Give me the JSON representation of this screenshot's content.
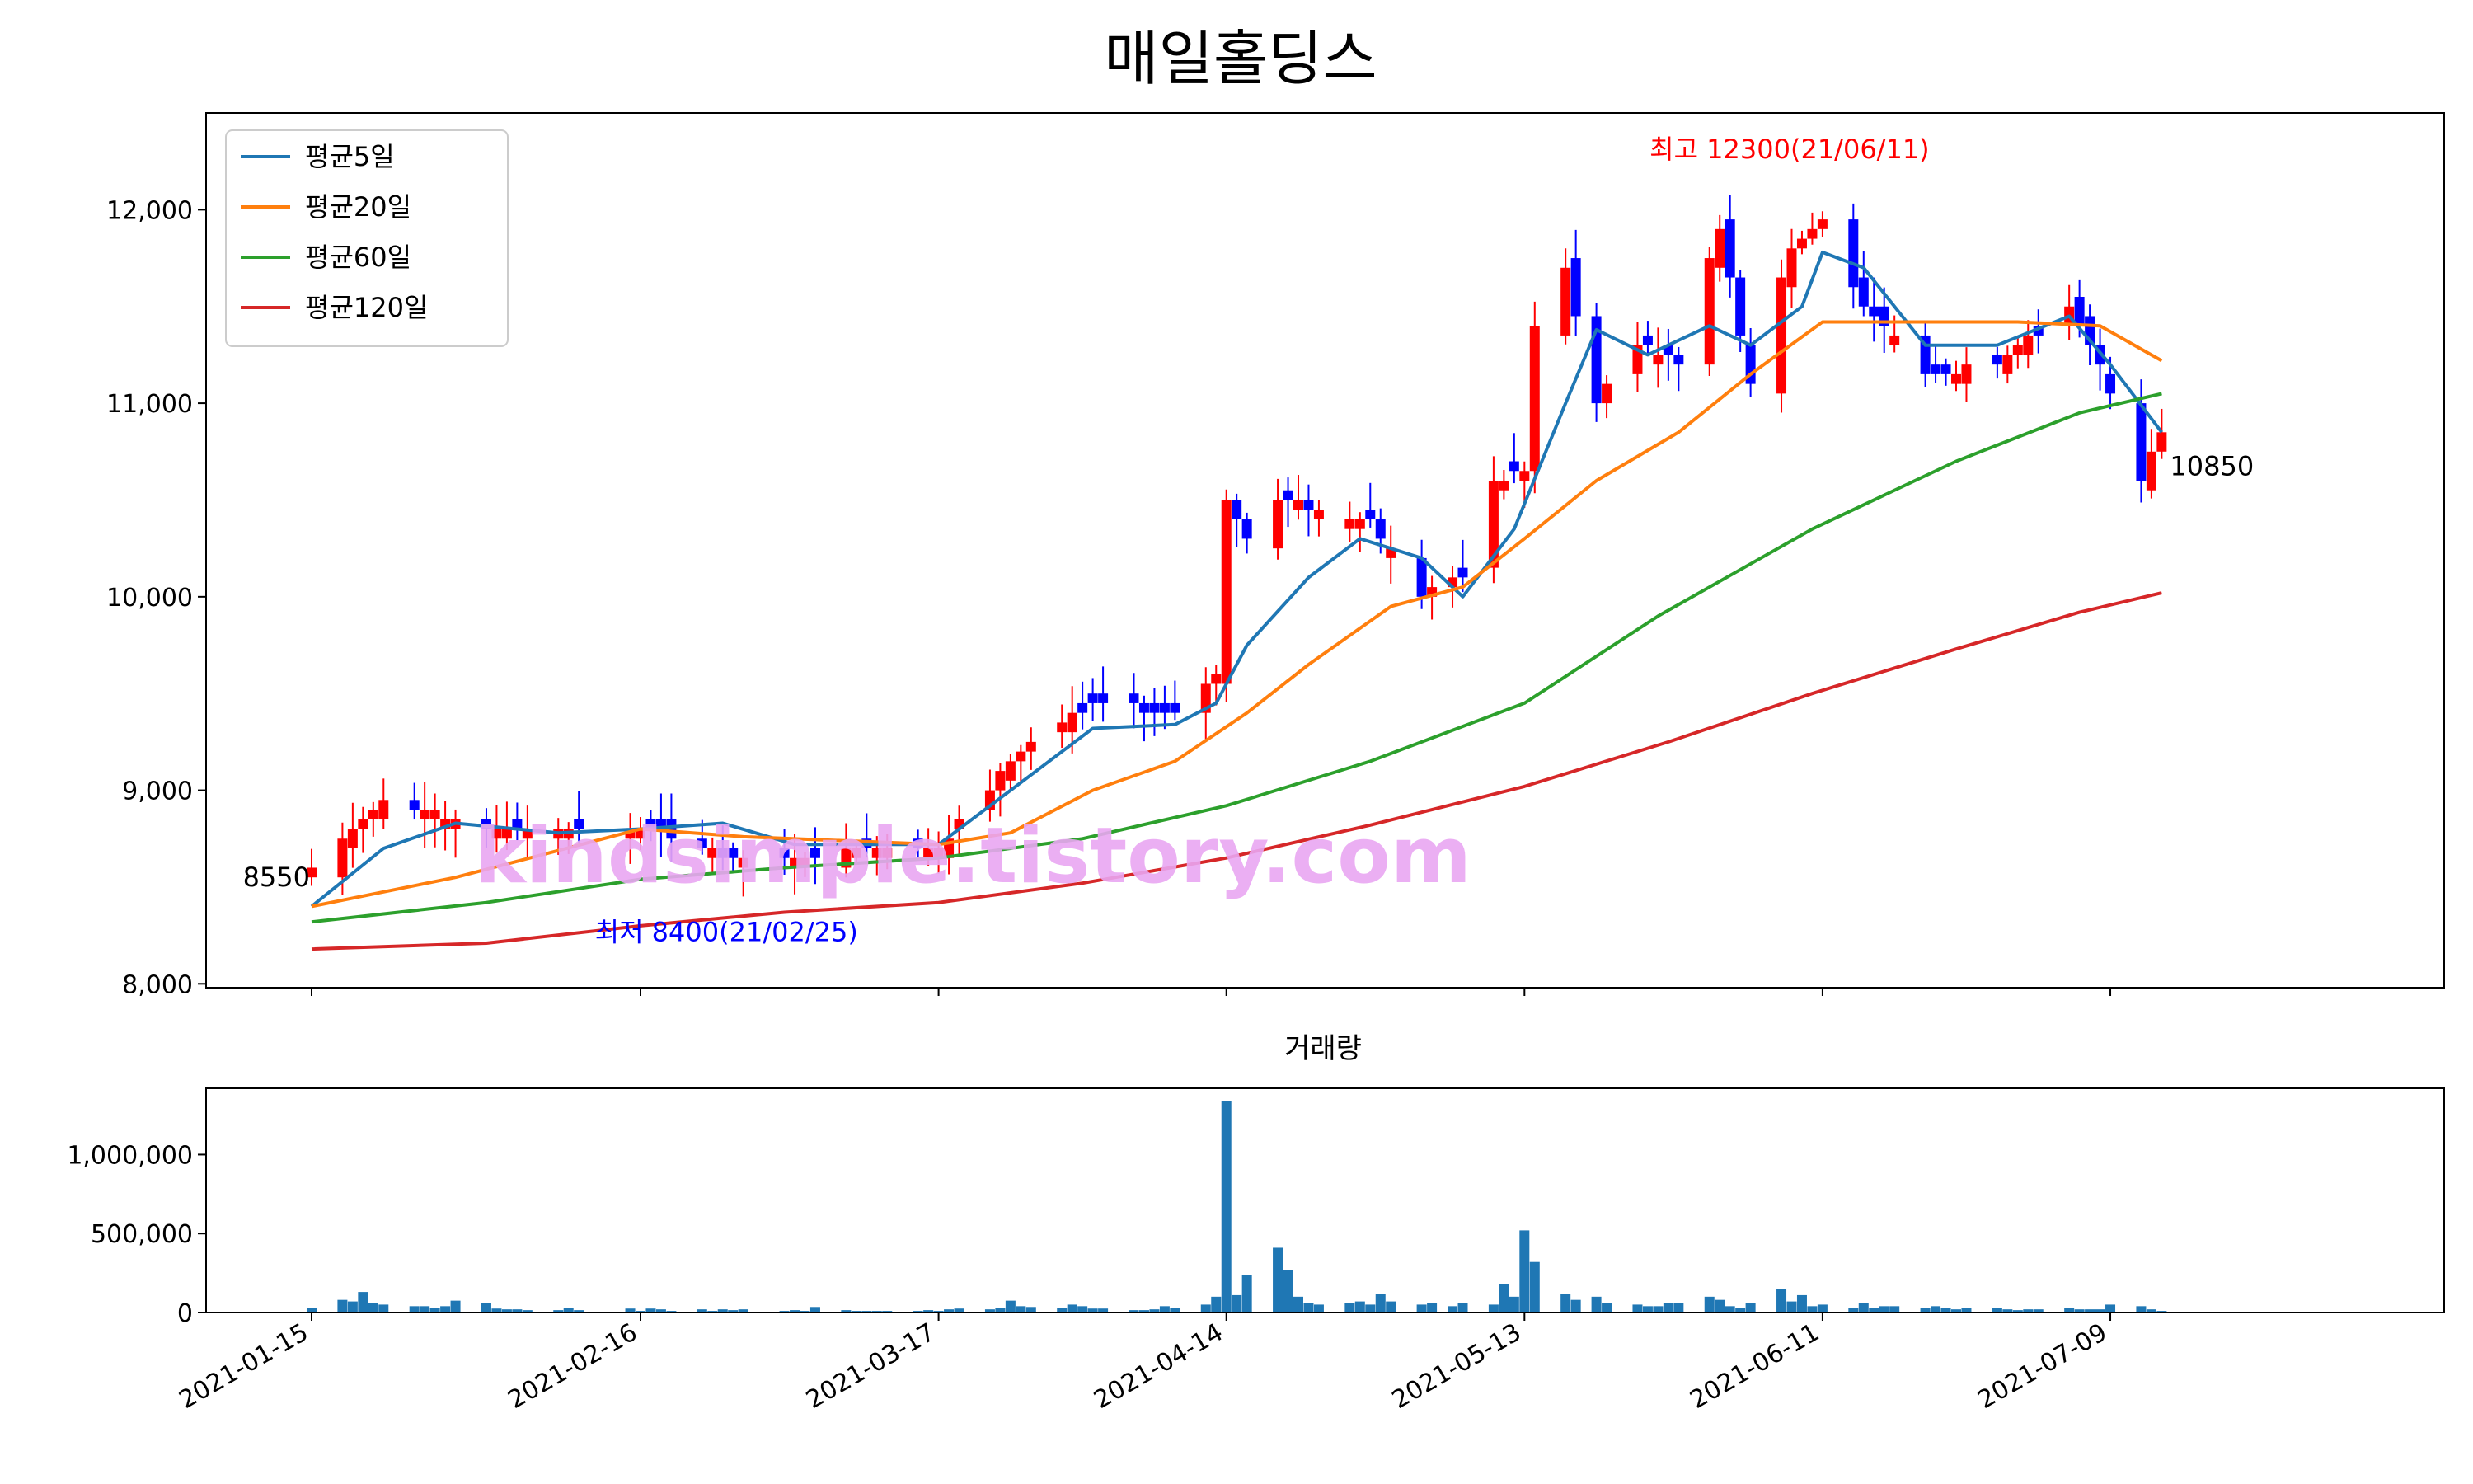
{
  "chart_data": [
    {
      "type": "candlestick",
      "title": "매일홀딩스",
      "xlabel": "",
      "ylabel": "",
      "ylim": [
        7980,
        12500
      ],
      "y_ticks": [
        8000,
        9000,
        10000,
        11000,
        12000
      ],
      "y_tick_labels": [
        "8,000",
        "9,000",
        "10,000",
        "11,000",
        "12,000"
      ],
      "x_ticks": [
        "2021-01-15",
        "2021-02-16",
        "2021-03-17",
        "2021-04-14",
        "2021-05-13",
        "2021-06-11",
        "2021-07-09"
      ],
      "legend_position": "top-left",
      "up_color": "#ff0000",
      "down_color": "#0000ff",
      "anchors": [
        {
          "date": "2021-01-15",
          "close": 8600
        },
        {
          "date": "2021-01-22",
          "close": 8950
        },
        {
          "date": "2021-02-01",
          "close": 8800
        },
        {
          "date": "2021-02-16",
          "close": 8820
        },
        {
          "date": "2021-02-25",
          "close": 8650
        },
        {
          "date": "2021-03-17",
          "close": 8700
        },
        {
          "date": "2021-03-24",
          "close": 9150
        },
        {
          "date": "2021-04-01",
          "close": 9450
        },
        {
          "date": "2021-04-09",
          "close": 9400
        },
        {
          "date": "2021-04-13",
          "close": 9600
        },
        {
          "date": "2021-04-14",
          "close": 10500
        },
        {
          "date": "2021-04-16",
          "close": 10300
        },
        {
          "date": "2021-04-19",
          "close": 10500
        },
        {
          "date": "2021-04-28",
          "close": 10400
        },
        {
          "date": "2021-05-03",
          "close": 10000
        },
        {
          "date": "2021-05-07",
          "close": 10100
        },
        {
          "date": "2021-05-10",
          "close": 10600
        },
        {
          "date": "2021-05-13",
          "close": 10650
        },
        {
          "date": "2021-05-14",
          "close": 11400
        },
        {
          "date": "2021-05-17",
          "close": 11700
        },
        {
          "date": "2021-05-20",
          "close": 11000
        },
        {
          "date": "2021-05-24",
          "close": 11300
        },
        {
          "date": "2021-05-28",
          "close": 11200
        },
        {
          "date": "2021-06-01",
          "close": 11900
        },
        {
          "date": "2021-06-04",
          "close": 11100
        },
        {
          "date": "2021-06-08",
          "close": 11800
        },
        {
          "date": "2021-06-11",
          "close": 11950
        },
        {
          "date": "2021-06-15",
          "close": 11500
        },
        {
          "date": "2021-06-21",
          "close": 11150
        },
        {
          "date": "2021-06-28",
          "close": 11200
        },
        {
          "date": "2021-07-05",
          "close": 11500
        },
        {
          "date": "2021-07-08",
          "close": 11200
        },
        {
          "date": "2021-07-12",
          "close": 10600
        },
        {
          "date": "2021-07-14",
          "close": 10850
        }
      ],
      "moving_averages": [
        {
          "name": "평균5일",
          "color": "#1f77b4",
          "points": [
            [
              "2021-01-15",
              8400
            ],
            [
              "2021-01-22",
              8700
            ],
            [
              "2021-01-29",
              8830
            ],
            [
              "2021-02-08",
              8780
            ],
            [
              "2021-02-16",
              8800
            ],
            [
              "2021-02-24",
              8830
            ],
            [
              "2021-03-03",
              8720
            ],
            [
              "2021-03-17",
              8720
            ],
            [
              "2021-03-24",
              9000
            ],
            [
              "2021-04-01",
              9320
            ],
            [
              "2021-04-09",
              9340
            ],
            [
              "2021-04-13",
              9450
            ],
            [
              "2021-04-16",
              9750
            ],
            [
              "2021-04-22",
              10100
            ],
            [
              "2021-04-27",
              10300
            ],
            [
              "2021-05-03",
              10200
            ],
            [
              "2021-05-07",
              10000
            ],
            [
              "2021-05-12",
              10350
            ],
            [
              "2021-05-17",
              11000
            ],
            [
              "2021-05-20",
              11380
            ],
            [
              "2021-05-25",
              11250
            ],
            [
              "2021-05-31",
              11400
            ],
            [
              "2021-06-04",
              11300
            ],
            [
              "2021-06-09",
              11500
            ],
            [
              "2021-06-11",
              11780
            ],
            [
              "2021-06-15",
              11700
            ],
            [
              "2021-06-21",
              11300
            ],
            [
              "2021-06-28",
              11300
            ],
            [
              "2021-07-05",
              11450
            ],
            [
              "2021-07-09",
              11200
            ],
            [
              "2021-07-14",
              10850
            ]
          ]
        },
        {
          "name": "평균20일",
          "color": "#ff7f0e",
          "points": [
            [
              "2021-01-15",
              8400
            ],
            [
              "2021-01-29",
              8550
            ],
            [
              "2021-02-16",
              8800
            ],
            [
              "2021-02-26",
              8760
            ],
            [
              "2021-03-17",
              8720
            ],
            [
              "2021-03-24",
              8780
            ],
            [
              "2021-04-01",
              9000
            ],
            [
              "2021-04-09",
              9150
            ],
            [
              "2021-04-16",
              9400
            ],
            [
              "2021-04-22",
              9650
            ],
            [
              "2021-04-30",
              9950
            ],
            [
              "2021-05-07",
              10050
            ],
            [
              "2021-05-13",
              10300
            ],
            [
              "2021-05-20",
              10600
            ],
            [
              "2021-05-28",
              10850
            ],
            [
              "2021-06-04",
              11150
            ],
            [
              "2021-06-11",
              11420
            ],
            [
              "2021-06-21",
              11420
            ],
            [
              "2021-06-30",
              11420
            ],
            [
              "2021-07-08",
              11400
            ],
            [
              "2021-07-14",
              11220
            ]
          ]
        },
        {
          "name": "평균60일",
          "color": "#2ca02c",
          "points": [
            [
              "2021-01-15",
              8320
            ],
            [
              "2021-02-01",
              8420
            ],
            [
              "2021-02-16",
              8540
            ],
            [
              "2021-03-02",
              8600
            ],
            [
              "2021-03-17",
              8650
            ],
            [
              "2021-03-31",
              8750
            ],
            [
              "2021-04-14",
              8920
            ],
            [
              "2021-04-28",
              9150
            ],
            [
              "2021-05-13",
              9450
            ],
            [
              "2021-05-26",
              9900
            ],
            [
              "2021-06-10",
              10350
            ],
            [
              "2021-06-24",
              10700
            ],
            [
              "2021-07-06",
              10950
            ],
            [
              "2021-07-14",
              11050
            ]
          ]
        },
        {
          "name": "평균120일",
          "color": "#d62728",
          "points": [
            [
              "2021-01-15",
              8180
            ],
            [
              "2021-02-01",
              8210
            ],
            [
              "2021-02-16",
              8300
            ],
            [
              "2021-03-02",
              8370
            ],
            [
              "2021-03-17",
              8420
            ],
            [
              "2021-03-31",
              8520
            ],
            [
              "2021-04-14",
              8650
            ],
            [
              "2021-04-28",
              8820
            ],
            [
              "2021-05-13",
              9020
            ],
            [
              "2021-05-27",
              9250
            ],
            [
              "2021-06-10",
              9500
            ],
            [
              "2021-06-24",
              9730
            ],
            [
              "2021-07-06",
              9920
            ],
            [
              "2021-07-14",
              10020
            ]
          ]
        }
      ],
      "annotations": [
        {
          "text": "최고 12300(21/06/11)",
          "date": "2021-06-11",
          "value": 12300,
          "color": "#ff0000"
        },
        {
          "text": "최저 8400(21/02/25)",
          "date": "2021-02-25",
          "value": 8400,
          "color": "#0000ff"
        },
        {
          "text": "8550",
          "date": "2021-01-15",
          "value": 8550,
          "color": "#000000"
        },
        {
          "text": "10850",
          "date": "2021-07-14",
          "value": 10850,
          "color": "#000000"
        }
      ]
    },
    {
      "type": "bar",
      "title": "거래량",
      "ylim": [
        0,
        1420000
      ],
      "y_ticks": [
        0,
        500000,
        1000000
      ],
      "y_tick_labels": [
        "0",
        "500,000",
        "1,000,000"
      ],
      "x_ticks": [
        "2021-01-15",
        "2021-02-16",
        "2021-03-17",
        "2021-04-14",
        "2021-05-13",
        "2021-06-11",
        "2021-07-09"
      ],
      "color": "#1f77b4",
      "values": [
        [
          "2021-01-15",
          30000
        ],
        [
          "2021-01-18",
          80000
        ],
        [
          "2021-01-19",
          70000
        ],
        [
          "2021-01-20",
          130000
        ],
        [
          "2021-01-21",
          60000
        ],
        [
          "2021-01-22",
          50000
        ],
        [
          "2021-01-25",
          40000
        ],
        [
          "2021-01-26",
          40000
        ],
        [
          "2021-01-27",
          30000
        ],
        [
          "2021-01-28",
          40000
        ],
        [
          "2021-01-29",
          75000
        ],
        [
          "2021-02-01",
          60000
        ],
        [
          "2021-02-02",
          25000
        ],
        [
          "2021-02-03",
          20000
        ],
        [
          "2021-02-04",
          20000
        ],
        [
          "2021-02-05",
          15000
        ],
        [
          "2021-02-08",
          15000
        ],
        [
          "2021-02-09",
          30000
        ],
        [
          "2021-02-10",
          15000
        ],
        [
          "2021-02-15",
          25000
        ],
        [
          "2021-02-16",
          10000
        ],
        [
          "2021-02-17",
          25000
        ],
        [
          "2021-02-18",
          20000
        ],
        [
          "2021-02-19",
          10000
        ],
        [
          "2021-02-22",
          20000
        ],
        [
          "2021-02-23",
          10000
        ],
        [
          "2021-02-24",
          20000
        ],
        [
          "2021-02-25",
          15000
        ],
        [
          "2021-02-26",
          20000
        ],
        [
          "2021-03-02",
          10000
        ],
        [
          "2021-03-03",
          15000
        ],
        [
          "2021-03-04",
          10000
        ],
        [
          "2021-03-05",
          35000
        ],
        [
          "2021-03-08",
          15000
        ],
        [
          "2021-03-09",
          10000
        ],
        [
          "2021-03-10",
          10000
        ],
        [
          "2021-03-11",
          10000
        ],
        [
          "2021-03-12",
          10000
        ],
        [
          "2021-03-15",
          10000
        ],
        [
          "2021-03-16",
          15000
        ],
        [
          "2021-03-17",
          10000
        ],
        [
          "2021-03-18",
          20000
        ],
        [
          "2021-03-19",
          25000
        ],
        [
          "2021-03-22",
          20000
        ],
        [
          "2021-03-23",
          30000
        ],
        [
          "2021-03-24",
          75000
        ],
        [
          "2021-03-25",
          40000
        ],
        [
          "2021-03-26",
          35000
        ],
        [
          "2021-03-29",
          30000
        ],
        [
          "2021-03-30",
          50000
        ],
        [
          "2021-03-31",
          40000
        ],
        [
          "2021-04-01",
          25000
        ],
        [
          "2021-04-02",
          25000
        ],
        [
          "2021-04-05",
          15000
        ],
        [
          "2021-04-06",
          15000
        ],
        [
          "2021-04-07",
          20000
        ],
        [
          "2021-04-08",
          40000
        ],
        [
          "2021-04-09",
          30000
        ],
        [
          "2021-04-12",
          50000
        ],
        [
          "2021-04-13",
          100000
        ],
        [
          "2021-04-14",
          1340000
        ],
        [
          "2021-04-15",
          110000
        ],
        [
          "2021-04-16",
          240000
        ],
        [
          "2021-04-19",
          410000
        ],
        [
          "2021-04-20",
          270000
        ],
        [
          "2021-04-21",
          100000
        ],
        [
          "2021-04-22",
          60000
        ],
        [
          "2021-04-23",
          50000
        ],
        [
          "2021-04-26",
          60000
        ],
        [
          "2021-04-27",
          70000
        ],
        [
          "2021-04-28",
          50000
        ],
        [
          "2021-04-29",
          120000
        ],
        [
          "2021-04-30",
          70000
        ],
        [
          "2021-05-03",
          50000
        ],
        [
          "2021-05-04",
          60000
        ],
        [
          "2021-05-06",
          40000
        ],
        [
          "2021-05-07",
          60000
        ],
        [
          "2021-05-10",
          50000
        ],
        [
          "2021-05-11",
          180000
        ],
        [
          "2021-05-12",
          100000
        ],
        [
          "2021-05-13",
          520000
        ],
        [
          "2021-05-14",
          320000
        ],
        [
          "2021-05-17",
          120000
        ],
        [
          "2021-05-18",
          80000
        ],
        [
          "2021-05-20",
          100000
        ],
        [
          "2021-05-21",
          60000
        ],
        [
          "2021-05-24",
          50000
        ],
        [
          "2021-05-25",
          40000
        ],
        [
          "2021-05-26",
          40000
        ],
        [
          "2021-05-27",
          60000
        ],
        [
          "2021-05-28",
          60000
        ],
        [
          "2021-05-31",
          100000
        ],
        [
          "2021-06-01",
          80000
        ],
        [
          "2021-06-02",
          40000
        ],
        [
          "2021-06-03",
          30000
        ],
        [
          "2021-06-04",
          60000
        ],
        [
          "2021-06-07",
          150000
        ],
        [
          "2021-06-08",
          70000
        ],
        [
          "2021-06-09",
          110000
        ],
        [
          "2021-06-10",
          40000
        ],
        [
          "2021-06-11",
          50000
        ],
        [
          "2021-06-14",
          30000
        ],
        [
          "2021-06-15",
          60000
        ],
        [
          "2021-06-16",
          30000
        ],
        [
          "2021-06-17",
          40000
        ],
        [
          "2021-06-18",
          40000
        ],
        [
          "2021-06-21",
          30000
        ],
        [
          "2021-06-22",
          40000
        ],
        [
          "2021-06-23",
          30000
        ],
        [
          "2021-06-24",
          20000
        ],
        [
          "2021-06-25",
          30000
        ],
        [
          "2021-06-28",
          30000
        ],
        [
          "2021-06-29",
          20000
        ],
        [
          "2021-06-30",
          15000
        ],
        [
          "2021-07-01",
          20000
        ],
        [
          "2021-07-02",
          20000
        ],
        [
          "2021-07-05",
          30000
        ],
        [
          "2021-07-06",
          20000
        ],
        [
          "2021-07-07",
          20000
        ],
        [
          "2021-07-08",
          20000
        ],
        [
          "2021-07-09",
          50000
        ],
        [
          "2021-07-12",
          40000
        ],
        [
          "2021-07-13",
          20000
        ],
        [
          "2021-07-14",
          10000
        ]
      ]
    }
  ],
  "watermark": "kindsimple.tistory.com"
}
